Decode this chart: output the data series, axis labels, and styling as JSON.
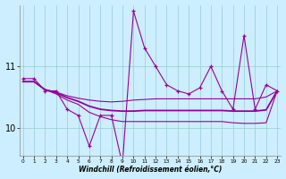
{
  "xlabel": "Windchill (Refroidissement éolien,°C)",
  "hours": [
    0,
    1,
    2,
    3,
    4,
    5,
    6,
    7,
    8,
    9,
    10,
    11,
    12,
    13,
    14,
    15,
    16,
    17,
    18,
    19,
    20,
    21,
    22,
    23
  ],
  "line_spiky": [
    10.8,
    10.8,
    10.6,
    10.6,
    10.3,
    10.2,
    9.7,
    10.2,
    10.2,
    9.4,
    11.9,
    11.3,
    11.0,
    10.7,
    10.6,
    10.55,
    10.65,
    11.0,
    10.6,
    10.3,
    11.5,
    10.3,
    10.7,
    10.6
  ],
  "line_upper": [
    10.75,
    10.75,
    10.62,
    10.58,
    10.52,
    10.48,
    10.45,
    10.43,
    10.42,
    10.43,
    10.45,
    10.46,
    10.47,
    10.47,
    10.47,
    10.47,
    10.47,
    10.47,
    10.47,
    10.47,
    10.47,
    10.47,
    10.5,
    10.6
  ],
  "line_lower": [
    10.75,
    10.75,
    10.62,
    10.55,
    10.45,
    10.38,
    10.25,
    10.18,
    10.13,
    10.1,
    10.1,
    10.1,
    10.1,
    10.1,
    10.1,
    10.1,
    10.1,
    10.1,
    10.1,
    10.08,
    10.07,
    10.07,
    10.08,
    10.6
  ],
  "line_mid": [
    10.75,
    10.75,
    10.62,
    10.57,
    10.49,
    10.43,
    10.35,
    10.3,
    10.28,
    10.27,
    10.27,
    10.28,
    10.28,
    10.28,
    10.28,
    10.28,
    10.28,
    10.28,
    10.28,
    10.27,
    10.27,
    10.27,
    10.29,
    10.6
  ],
  "bg_color": "#cceeff",
  "line_color": "#990099",
  "grid_color": "#99cccc",
  "ylim": [
    9.55,
    12.0
  ],
  "ytick_vals": [
    10,
    11
  ],
  "ytick_labels": [
    "10",
    "11"
  ]
}
